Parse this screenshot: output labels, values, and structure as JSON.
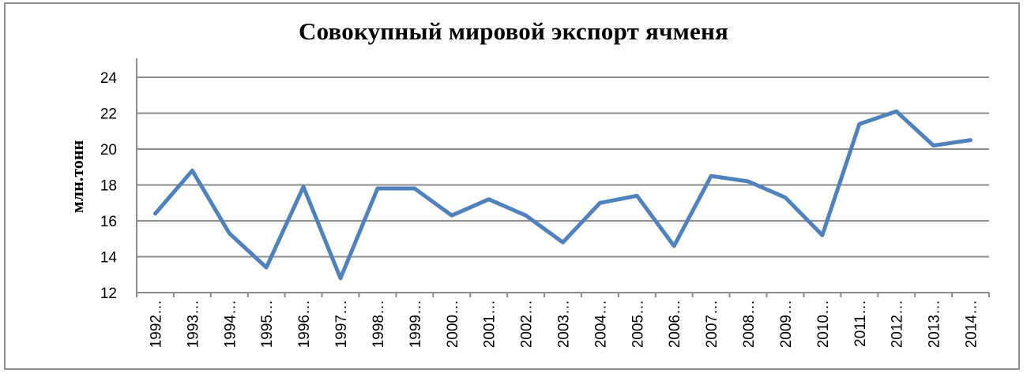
{
  "chart_data": {
    "type": "line",
    "title": "Совокупный мировой экспорт ячменя",
    "ylabel": "млн.тонн",
    "xlabel": "",
    "ylim": [
      12,
      24
    ],
    "yticks": [
      12,
      14,
      16,
      18,
      20,
      22,
      24
    ],
    "grid": true,
    "legend": "none",
    "line_color": "#4f81bd",
    "grid_color": "#8c8c8c",
    "categories": [
      "1992…",
      "1993…",
      "1994…",
      "1995…",
      "1996…",
      "1997…",
      "1998…",
      "1999…",
      "2000…",
      "2001…",
      "2002…",
      "2003…",
      "2004…",
      "2005…",
      "2006…",
      "2007…",
      "2008…",
      "2009…",
      "2010…",
      "2011…",
      "2012…",
      "2013…",
      "2014…"
    ],
    "series": [
      {
        "values": [
          16.4,
          18.8,
          15.3,
          13.4,
          17.9,
          12.8,
          17.8,
          17.8,
          16.3,
          17.2,
          16.3,
          14.8,
          17.0,
          17.4,
          14.6,
          18.5,
          18.2,
          17.3,
          15.2,
          21.4,
          22.1,
          20.2,
          20.5
        ]
      }
    ]
  }
}
